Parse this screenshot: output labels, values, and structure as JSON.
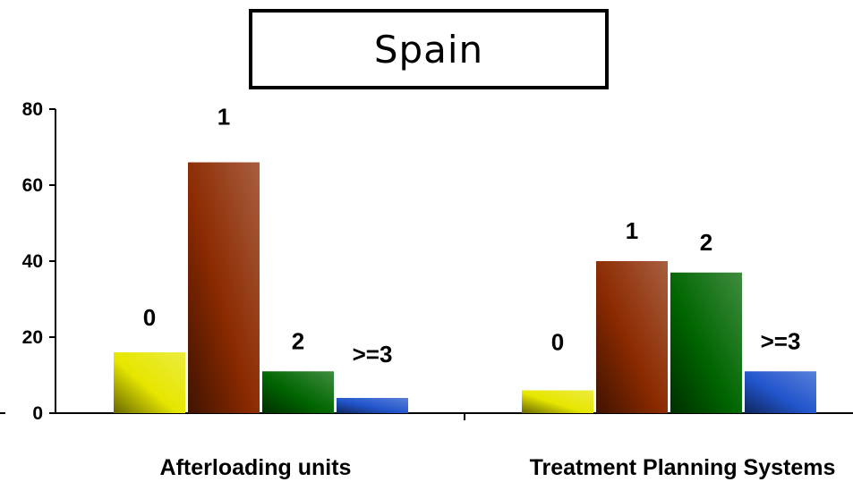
{
  "chart_data": {
    "type": "bar",
    "title": "Spain",
    "categories": [
      "Afterloading units",
      "Treatment Planning Systems"
    ],
    "series": [
      {
        "name": "0",
        "color": "#e6e600",
        "values": [
          16,
          6
        ]
      },
      {
        "name": "1",
        "color": "#8b2a00",
        "values": [
          66,
          40
        ]
      },
      {
        "name": "2",
        "color": "#006600",
        "values": [
          11,
          37
        ]
      },
      {
        "name": ">=3",
        "color": "#2255cc",
        "values": [
          4,
          11
        ]
      }
    ],
    "data_labels": [
      [
        "0",
        "1",
        "2",
        ">=3"
      ],
      [
        "0",
        "1",
        "2",
        ">=3"
      ]
    ],
    "yticks": [
      "0",
      "20",
      "40",
      "60",
      "80"
    ],
    "ylim": [
      0,
      80
    ],
    "grid": false,
    "legend": "none"
  }
}
